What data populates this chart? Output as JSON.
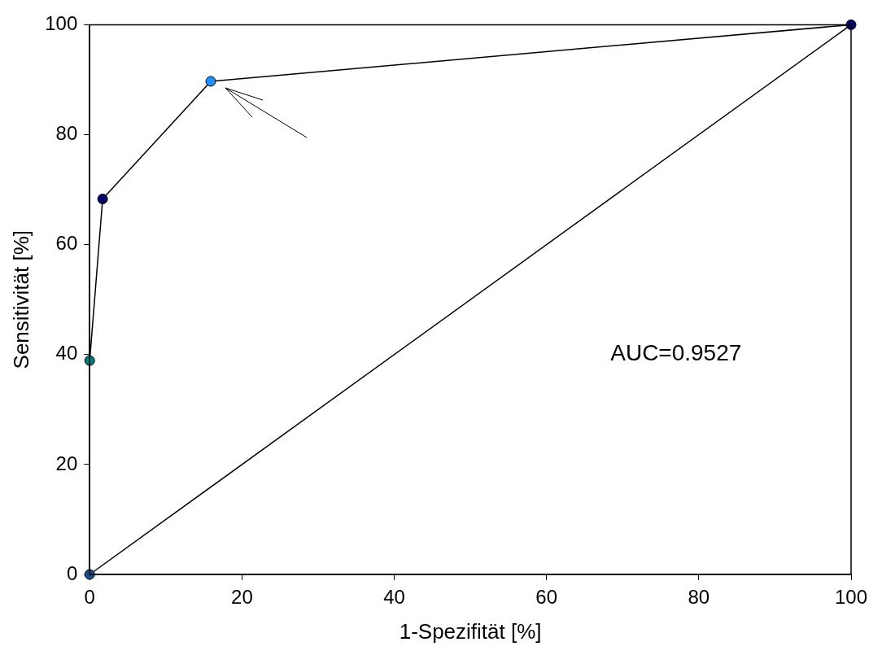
{
  "chart_data": {
    "type": "line",
    "xlabel": "1-Spezifität [%]",
    "ylabel": "Sensitivität [%]",
    "xlim": [
      0,
      100
    ],
    "xticks": [
      0,
      20,
      40,
      60,
      80,
      100
    ],
    "ylim": [
      0,
      100
    ],
    "yticks": [
      0,
      20,
      40,
      60,
      80,
      100
    ],
    "grid": false,
    "legend": false,
    "marker": "circle",
    "annotations": [
      "AUC=0.9527"
    ],
    "series": [
      {
        "color": "#000000",
        "x": [
          0,
          0,
          1.7,
          15.9,
          100
        ],
        "values": [
          0,
          38.9,
          68.3,
          89.7,
          100
        ],
        "colors": [
          "#1f4e8c",
          "#008080",
          "#000066",
          "#1e90ff",
          "#000066"
        ]
      },
      {
        "color": "#000000",
        "marker": "none",
        "x": [
          0,
          100
        ],
        "values": [
          0,
          100
        ]
      }
    ]
  }
}
